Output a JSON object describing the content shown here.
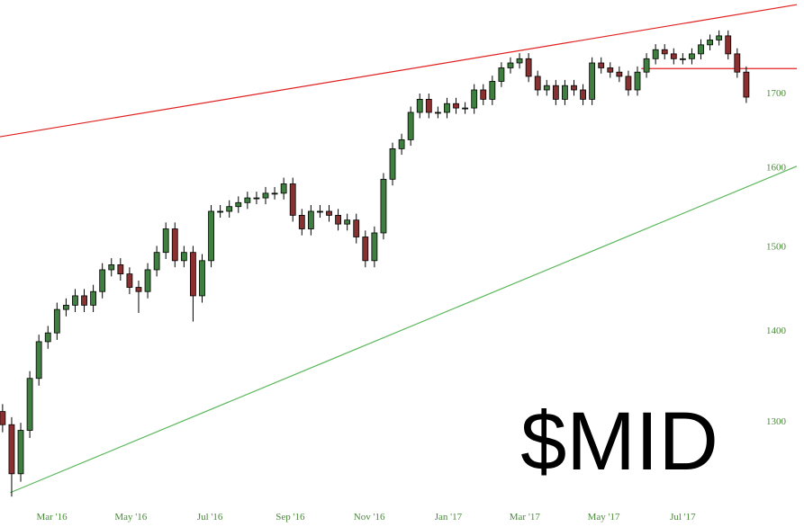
{
  "chart_data": {
    "type": "candlestick",
    "title": "$MID",
    "log": true,
    "up_color": "#3f7f3f",
    "down_color": "#8a3030",
    "outline_color": "#000000",
    "xlim": [
      -18,
      597
    ],
    "ylim": [
      1215,
      1834
    ],
    "xticks": [
      {
        "value": 22,
        "label": "Mar '16"
      },
      {
        "value": 83,
        "label": "May '16"
      },
      {
        "value": 144,
        "label": "Jul '16"
      },
      {
        "value": 206,
        "label": "Sep '16"
      },
      {
        "value": 267,
        "label": "Nov '16"
      },
      {
        "value": 328,
        "label": "Jan '17"
      },
      {
        "value": 387,
        "label": "Mar '17"
      },
      {
        "value": 448,
        "label": "May '17"
      },
      {
        "value": 509,
        "label": "Jul '17"
      }
    ],
    "yticks": [
      1300,
      1400,
      1500,
      1600,
      1700
    ],
    "x": [
      -16,
      -9,
      -2,
      5,
      12,
      19,
      26,
      33,
      40,
      47,
      54,
      61,
      68,
      75,
      82,
      89,
      96,
      103,
      110,
      117,
      124,
      131,
      138,
      145,
      152,
      159,
      166,
      173,
      180,
      187,
      194,
      201,
      208,
      215,
      222,
      229,
      236,
      243,
      250,
      257,
      264,
      271,
      278,
      285,
      292,
      299,
      306,
      313,
      320,
      327,
      334,
      341,
      348,
      355,
      362,
      369,
      376,
      383,
      390,
      397,
      404,
      411,
      418,
      425,
      432,
      439,
      446,
      453,
      460,
      467,
      474,
      481,
      488,
      495,
      502,
      509,
      516,
      523,
      530,
      537,
      544,
      551,
      558
    ],
    "open": [
      1310,
      1296,
      1245,
      1290,
      1346,
      1387,
      1397,
      1424,
      1429,
      1440,
      1429,
      1445,
      1471,
      1477,
      1466,
      1450,
      1445,
      1471,
      1492,
      1521,
      1482,
      1492,
      1440,
      1482,
      1543,
      1543,
      1549,
      1554,
      1560,
      1560,
      1566,
      1566,
      1578,
      1538,
      1521,
      1543,
      1543,
      1538,
      1527,
      1532,
      1511,
      1482,
      1516,
      1584,
      1624,
      1636,
      1673,
      1691,
      1673,
      1673,
      1685,
      1679,
      1679,
      1704,
      1691,
      1716,
      1735,
      1742,
      1748,
      1723,
      1704,
      1710,
      1691,
      1710,
      1704,
      1691,
      1742,
      1735,
      1729,
      1723,
      1704,
      1729,
      1748,
      1761,
      1755,
      1748,
      1748,
      1755,
      1768,
      1775,
      1781,
      1755,
      1729
    ],
    "high": [
      1318,
      1304,
      1298,
      1354,
      1395,
      1405,
      1432,
      1437,
      1448,
      1448,
      1453,
      1479,
      1485,
      1485,
      1474,
      1458,
      1479,
      1500,
      1529,
      1529,
      1500,
      1500,
      1490,
      1551,
      1551,
      1557,
      1562,
      1568,
      1568,
      1574,
      1574,
      1586,
      1586,
      1546,
      1551,
      1551,
      1551,
      1546,
      1540,
      1540,
      1519,
      1524,
      1592,
      1632,
      1644,
      1681,
      1699,
      1699,
      1681,
      1693,
      1693,
      1687,
      1712,
      1712,
      1724,
      1743,
      1750,
      1756,
      1756,
      1731,
      1718,
      1718,
      1718,
      1718,
      1712,
      1750,
      1750,
      1743,
      1737,
      1731,
      1737,
      1756,
      1769,
      1769,
      1763,
      1756,
      1763,
      1776,
      1783,
      1789,
      1789,
      1763,
      1737
    ],
    "low": [
      1288,
      1222,
      1237,
      1282,
      1338,
      1379,
      1389,
      1416,
      1421,
      1421,
      1421,
      1437,
      1463,
      1458,
      1442,
      1420,
      1437,
      1463,
      1484,
      1474,
      1474,
      1410,
      1432,
      1474,
      1535,
      1535,
      1541,
      1546,
      1552,
      1552,
      1558,
      1558,
      1530,
      1513,
      1513,
      1535,
      1530,
      1519,
      1519,
      1503,
      1474,
      1474,
      1508,
      1576,
      1616,
      1628,
      1665,
      1665,
      1665,
      1665,
      1671,
      1671,
      1671,
      1683,
      1683,
      1708,
      1727,
      1734,
      1715,
      1696,
      1696,
      1683,
      1683,
      1696,
      1683,
      1683,
      1727,
      1721,
      1715,
      1696,
      1696,
      1721,
      1740,
      1747,
      1740,
      1740,
      1740,
      1747,
      1760,
      1767,
      1747,
      1721,
      1686
    ],
    "close": [
      1296,
      1245,
      1290,
      1346,
      1387,
      1397,
      1424,
      1429,
      1440,
      1429,
      1445,
      1471,
      1477,
      1466,
      1450,
      1445,
      1471,
      1492,
      1521,
      1482,
      1492,
      1440,
      1482,
      1543,
      1543,
      1549,
      1554,
      1560,
      1560,
      1566,
      1566,
      1578,
      1538,
      1521,
      1543,
      1543,
      1538,
      1527,
      1532,
      1511,
      1482,
      1516,
      1584,
      1624,
      1636,
      1673,
      1691,
      1673,
      1673,
      1685,
      1679,
      1679,
      1704,
      1691,
      1716,
      1735,
      1742,
      1748,
      1723,
      1704,
      1710,
      1691,
      1710,
      1704,
      1691,
      1742,
      1735,
      1729,
      1723,
      1704,
      1729,
      1748,
      1761,
      1755,
      1748,
      1748,
      1755,
      1768,
      1775,
      1781,
      1755,
      1729,
      1694
    ],
    "trend_lines": [
      {
        "color": "#e02020",
        "x": [
          -18,
          597
        ],
        "y": [
          1640,
          1827
        ]
      },
      {
        "color": "#5cb85c",
        "x": [
          -10,
          597
        ],
        "y": [
          1226,
          1601
        ]
      },
      {
        "color": "#e02020",
        "x": [
          477,
          597
        ],
        "y": [
          1734,
          1734
        ]
      }
    ]
  }
}
